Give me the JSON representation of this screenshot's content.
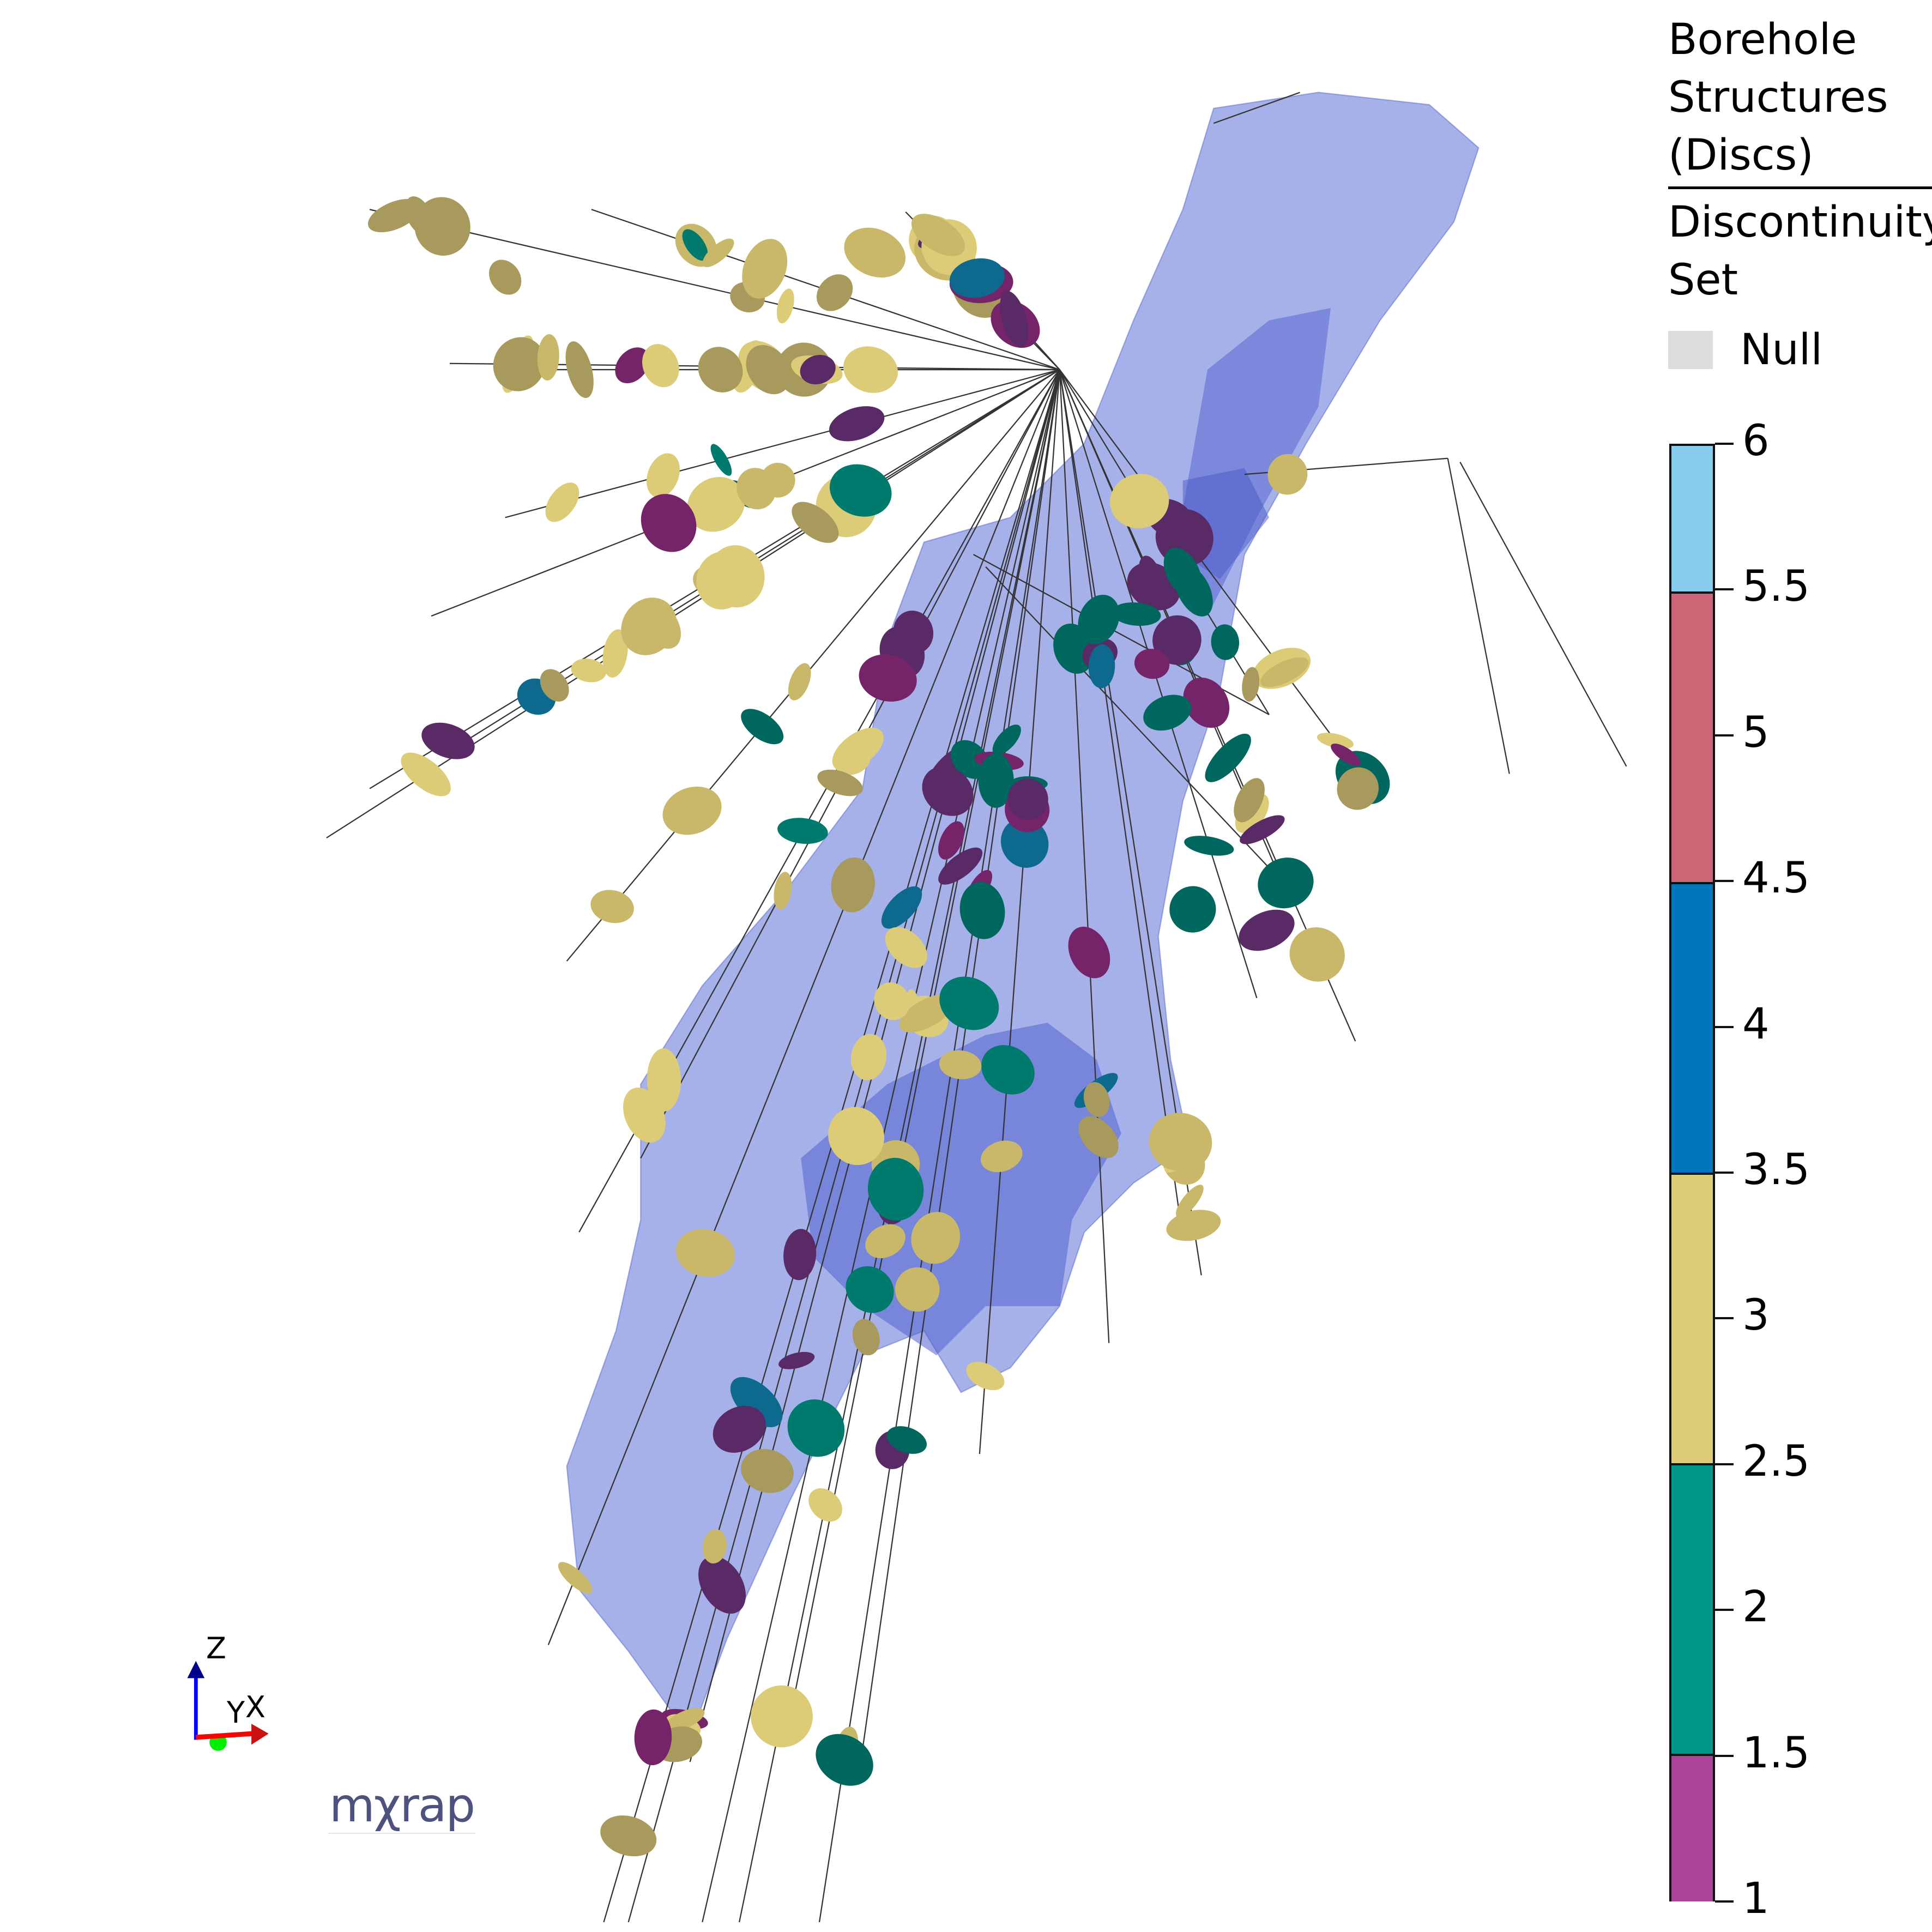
{
  "legend": {
    "title": "Borehole\nStructures\n(Discs)",
    "attribute": "Discontinuity\nSet",
    "null_label": "Null",
    "null_color": "#dcdcdc",
    "colorbar": {
      "min": 1,
      "max": 6,
      "tick_labels": [
        "6",
        "5.5",
        "5",
        "4.5",
        "4",
        "3.5",
        "3",
        "2.5",
        "2",
        "1.5",
        "1"
      ],
      "bands": [
        {
          "from": 5.5,
          "to": 6,
          "color": "#88ccee"
        },
        {
          "from": 4.5,
          "to": 5.5,
          "color": "#cc6677"
        },
        {
          "from": 3.5,
          "to": 4.5,
          "color": "#0077bb"
        },
        {
          "from": 2.5,
          "to": 3.5,
          "color": "#ddcc77"
        },
        {
          "from": 1.5,
          "to": 2.5,
          "color": "#009988"
        },
        {
          "from": 1,
          "to": 1.5,
          "color": "#aa4499"
        }
      ]
    }
  },
  "axes_triad": {
    "x": "X",
    "y": "Y",
    "z": "Z",
    "x_color": "#ff0000",
    "y_color": "#00ee00",
    "z_color": "#0000ff"
  },
  "logo": {
    "text": "mχrap"
  },
  "scene": {
    "orebody_color": "#8090e0",
    "disc_colors": [
      "#ddcc77",
      "#c9b86a",
      "#a89a5c",
      "#007a6c",
      "#00675e",
      "#0d6a8e",
      "#5a2a66",
      "#76246a"
    ]
  }
}
